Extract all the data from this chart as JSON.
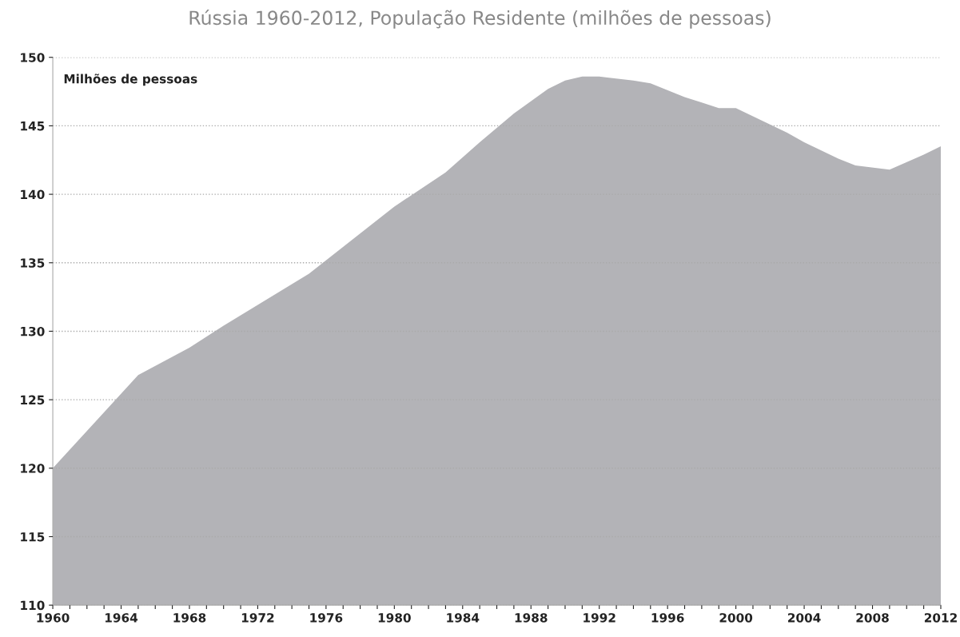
{
  "chart_data": {
    "type": "area",
    "title": "Rússia 1960-2012, População Residente (milhões de pessoas)",
    "ylabel": "Milhões de pessoas",
    "x": [
      1960,
      1965,
      1968,
      1970,
      1975,
      1980,
      1983,
      1985,
      1987,
      1989,
      1990,
      1991,
      1992,
      1994,
      1995,
      1997,
      1998,
      1999,
      2000,
      2001,
      2003,
      2004,
      2006,
      2007,
      2009,
      2011,
      2012
    ],
    "series": [
      {
        "color": "#b3b3b7",
        "values": [
          120.0,
          126.8,
          128.8,
          130.4,
          134.2,
          139.1,
          141.6,
          143.8,
          145.9,
          147.7,
          148.3,
          148.6,
          148.6,
          148.3,
          148.1,
          147.1,
          146.7,
          146.3,
          146.3,
          145.7,
          144.5,
          143.8,
          142.6,
          142.1,
          141.8,
          142.9,
          143.5
        ]
      }
    ],
    "xlim": [
      1960,
      2012
    ],
    "ylim": [
      110,
      150
    ],
    "yticks": [
      110,
      115,
      120,
      125,
      130,
      135,
      140,
      145,
      150
    ],
    "xticks": [
      1960,
      {
        "value": 1961,
        "label": null
      },
      {
        "value": 1962,
        "label": null
      },
      {
        "value": 1963,
        "label": null
      },
      1964,
      {
        "value": 1965,
        "label": null
      },
      {
        "value": 1966,
        "label": null
      },
      {
        "value": 1967,
        "label": null
      },
      1968,
      {
        "value": 1969,
        "label": null
      },
      {
        "value": 1970,
        "label": null
      },
      {
        "value": 1971,
        "label": null
      },
      1972,
      {
        "value": 1973,
        "label": null
      },
      {
        "value": 1974,
        "label": null
      },
      {
        "value": 1975,
        "label": null
      },
      1976,
      {
        "value": 1977,
        "label": null
      },
      {
        "value": 1978,
        "label": null
      },
      {
        "value": 1979,
        "label": null
      },
      1980,
      {
        "value": 1981,
        "label": null
      },
      {
        "value": 1982,
        "label": null
      },
      {
        "value": 1983,
        "label": null
      },
      1984,
      {
        "value": 1985,
        "label": null
      },
      {
        "value": 1986,
        "label": null
      },
      {
        "value": 1987,
        "label": null
      },
      1988,
      {
        "value": 1989,
        "label": null
      },
      {
        "value": 1990,
        "label": null
      },
      {
        "value": 1991,
        "label": null
      },
      1992,
      {
        "value": 1993,
        "label": null
      },
      {
        "value": 1994,
        "label": null
      },
      {
        "value": 1995,
        "label": null
      },
      1996,
      {
        "value": 1997,
        "label": null
      },
      {
        "value": 1998,
        "label": null
      },
      {
        "value": 1999,
        "label": null
      },
      2000,
      {
        "value": 2001,
        "label": null
      },
      {
        "value": 2002,
        "label": null
      },
      {
        "value": 2003,
        "label": null
      },
      2004,
      {
        "value": 2005,
        "label": null
      },
      {
        "value": 2006,
        "label": null
      },
      {
        "value": 2007,
        "label": null
      },
      2008,
      {
        "value": 2009,
        "label": null
      },
      {
        "value": 2010,
        "label": null
      },
      {
        "value": 2011,
        "label": null
      },
      2012
    ],
    "grid": "y",
    "line_style": "dotted"
  }
}
